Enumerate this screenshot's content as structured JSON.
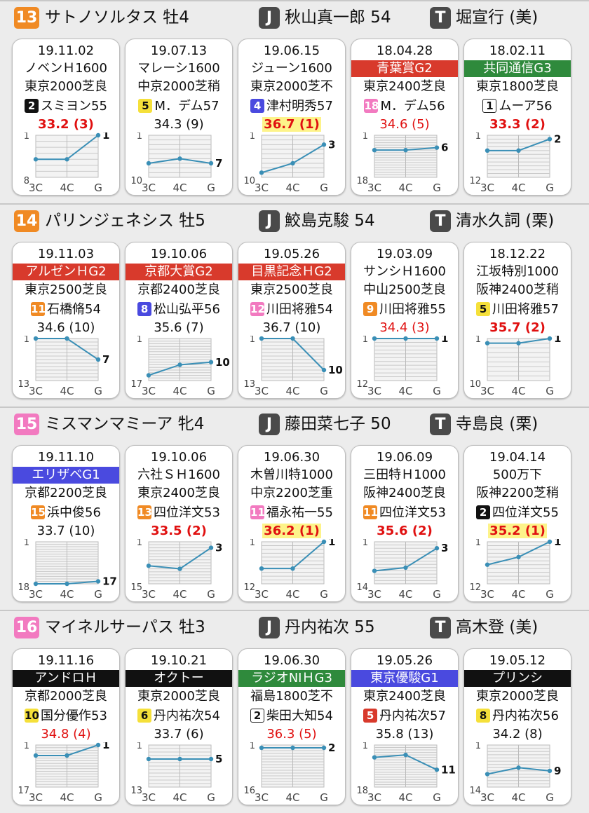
{
  "axis_labels": [
    "3C",
    "4C",
    "G"
  ],
  "horses": [
    {
      "number": "13",
      "number_color": "#f08a24",
      "name_sex_age": "サトノソルタス 牡4",
      "jockey_badge": "J",
      "jockey": "秋山真一郎 54",
      "trainer_badge": "T",
      "trainer": "堀宣行 (美)",
      "races": [
        {
          "date": "19.11.02",
          "race": "ノベンＨ1600",
          "race_band": "",
          "course": "東京2000芝良",
          "gate": "2",
          "gate_bg": "#111111",
          "gate_fg": "#ffffff",
          "gate_outline": false,
          "jockey": "スミヨン55",
          "time_pos": "33.2 (3)",
          "time_style": "red",
          "chart": {
            "top": "1",
            "bottom": "8",
            "min": 1,
            "max": 8,
            "values": [
              5,
              5,
              1
            ],
            "finish": "1"
          }
        },
        {
          "date": "19.07.13",
          "race": "マレーシ1600",
          "race_band": "",
          "course": "中京2000芝稍",
          "gate": "5",
          "gate_bg": "#f5e03a",
          "gate_fg": "#111111",
          "gate_outline": false,
          "jockey": "M．デム57",
          "time_pos": "34.3 (9)",
          "time_style": "",
          "chart": {
            "top": "1",
            "bottom": "10",
            "min": 1,
            "max": 10,
            "values": [
              7,
              6,
              7
            ],
            "finish": "7"
          }
        },
        {
          "date": "19.06.15",
          "race": "ジューン1600",
          "race_band": "",
          "course": "東京2000芝不",
          "gate": "4",
          "gate_bg": "#4a4adf",
          "gate_fg": "#ffffff",
          "gate_outline": false,
          "jockey": "津村明秀57",
          "time_pos": "36.7 (1)",
          "time_style": "red-hl",
          "chart": {
            "top": "1",
            "bottom": "10",
            "min": 1,
            "max": 10,
            "values": [
              9,
              7,
              3
            ],
            "finish": "3"
          }
        },
        {
          "date": "18.04.28",
          "race": "青葉賞G2",
          "race_band": "#d83a2c",
          "course": "東京2400芝良",
          "gate": "18",
          "gate_bg": "#f27ac0",
          "gate_fg": "#ffffff",
          "gate_outline": false,
          "jockey": "M．デム56",
          "time_pos": "34.6 (5)",
          "time_style": "red-light",
          "chart": {
            "top": "1",
            "bottom": "18",
            "min": 1,
            "max": 18,
            "values": [
              7,
              7,
              6
            ],
            "finish": "6"
          }
        },
        {
          "date": "18.02.11",
          "race": "共同通信G3",
          "race_band": "#2f8a3c",
          "course": "東京1800芝良",
          "gate": "1",
          "gate_bg": "#ffffff",
          "gate_fg": "#111111",
          "gate_outline": true,
          "jockey": "ムーア56",
          "time_pos": "33.3 (2)",
          "time_style": "red",
          "chart": {
            "top": "1",
            "bottom": "12",
            "min": 1,
            "max": 12,
            "values": [
              5,
              5,
              2
            ],
            "finish": "2"
          }
        }
      ]
    },
    {
      "number": "14",
      "number_color": "#f08a24",
      "name_sex_age": "パリンジェネシス 牡5",
      "jockey_badge": "J",
      "jockey": "鮫島克駿 54",
      "trainer_badge": "T",
      "trainer": "清水久詞 (栗)",
      "races": [
        {
          "date": "19.11.03",
          "race": "アルゼンＨG2",
          "race_band": "#d83a2c",
          "course": "東京2500芝良",
          "gate": "11",
          "gate_bg": "#f08a24",
          "gate_fg": "#ffffff",
          "gate_outline": false,
          "jockey": "石橋脩54",
          "time_pos": "34.6 (10)",
          "time_style": "",
          "chart": {
            "top": "1",
            "bottom": "13",
            "min": 1,
            "max": 13,
            "values": [
              1,
              1,
              7
            ],
            "finish": "7"
          }
        },
        {
          "date": "19.10.06",
          "race": "京都大賞G2",
          "race_band": "#d83a2c",
          "course": "京都2400芝良",
          "gate": "8",
          "gate_bg": "#4a4adf",
          "gate_fg": "#ffffff",
          "gate_outline": false,
          "jockey": "松山弘平56",
          "time_pos": "35.6 (7)",
          "time_style": "",
          "chart": {
            "top": "1",
            "bottom": "17",
            "min": 1,
            "max": 17,
            "values": [
              15,
              11,
              10
            ],
            "finish": "10"
          }
        },
        {
          "date": "19.05.26",
          "race": "目黒記念ＨG2",
          "race_band": "#d83a2c",
          "course": "東京2500芝良",
          "gate": "12",
          "gate_bg": "#f27ac0",
          "gate_fg": "#ffffff",
          "gate_outline": false,
          "jockey": "川田将雅54",
          "time_pos": "36.7 (10)",
          "time_style": "",
          "chart": {
            "top": "1",
            "bottom": "13",
            "min": 1,
            "max": 13,
            "values": [
              1,
              1,
              10
            ],
            "finish": "10"
          }
        },
        {
          "date": "19.03.09",
          "race": "サンシＨ1600",
          "race_band": "",
          "course": "中山2500芝良",
          "gate": "9",
          "gate_bg": "#f08a24",
          "gate_fg": "#ffffff",
          "gate_outline": false,
          "jockey": "川田将雅55",
          "time_pos": "34.4 (3)",
          "time_style": "red-light",
          "chart": {
            "top": "1",
            "bottom": "12",
            "min": 1,
            "max": 12,
            "values": [
              1,
              1,
              1
            ],
            "finish": "1"
          }
        },
        {
          "date": "18.12.22",
          "race": "江坂特別1000",
          "race_band": "",
          "course": "阪神2400芝稍",
          "gate": "5",
          "gate_bg": "#f5e03a",
          "gate_fg": "#111111",
          "gate_outline": false,
          "jockey": "川田将雅57",
          "time_pos": "35.7 (2)",
          "time_style": "red",
          "chart": {
            "top": "1",
            "bottom": "10",
            "min": 1,
            "max": 10,
            "values": [
              2,
              2,
              1
            ],
            "finish": "1"
          }
        }
      ]
    },
    {
      "number": "15",
      "number_color": "#f27ac0",
      "name_sex_age": "ミスマンマミーア 牝4",
      "jockey_badge": "J",
      "jockey": "藤田菜七子 50",
      "trainer_badge": "T",
      "trainer": "寺島良 (栗)",
      "races": [
        {
          "date": "19.11.10",
          "race": "エリザベG1",
          "race_band": "#4a4adf",
          "course": "京都2200芝良",
          "gate": "15",
          "gate_bg": "#f08a24",
          "gate_fg": "#ffffff",
          "gate_outline": false,
          "jockey": "浜中俊56",
          "time_pos": "33.7 (10)",
          "time_style": "",
          "chart": {
            "top": "1",
            "bottom": "18",
            "min": 1,
            "max": 18,
            "values": [
              18,
              18,
              17
            ],
            "finish": "17"
          }
        },
        {
          "date": "19.10.06",
          "race": "六社ＳＨ1600",
          "race_band": "",
          "course": "東京2400芝良",
          "gate": "13",
          "gate_bg": "#f08a24",
          "gate_fg": "#ffffff",
          "gate_outline": false,
          "jockey": "四位洋文53",
          "time_pos": "33.5 (2)",
          "time_style": "red",
          "chart": {
            "top": "1",
            "bottom": "15",
            "min": 1,
            "max": 15,
            "values": [
              9,
              10,
              3
            ],
            "finish": "3"
          }
        },
        {
          "date": "19.06.30",
          "race": "木曽川特1000",
          "race_band": "",
          "course": "中京2200芝重",
          "gate": "11",
          "gate_bg": "#f27ac0",
          "gate_fg": "#ffffff",
          "gate_outline": false,
          "jockey": "福永祐一55",
          "time_pos": "36.2 (1)",
          "time_style": "red-hl",
          "chart": {
            "top": "1",
            "bottom": "12",
            "min": 1,
            "max": 12,
            "values": [
              8,
              8,
              1
            ],
            "finish": "1"
          }
        },
        {
          "date": "19.06.09",
          "race": "三田特Ｈ1000",
          "race_band": "",
          "course": "阪神2400芝良",
          "gate": "11",
          "gate_bg": "#f08a24",
          "gate_fg": "#ffffff",
          "gate_outline": false,
          "jockey": "四位洋文53",
          "time_pos": "35.6 (2)",
          "time_style": "red",
          "chart": {
            "top": "1",
            "bottom": "14",
            "min": 1,
            "max": 14,
            "values": [
              10,
              9,
              3
            ],
            "finish": "3"
          }
        },
        {
          "date": "19.04.14",
          "race": "500万下",
          "race_band": "",
          "course": "阪神2200芝稍",
          "gate": "2",
          "gate_bg": "#111111",
          "gate_fg": "#ffffff",
          "gate_outline": false,
          "jockey": "四位洋文55",
          "time_pos": "35.2 (1)",
          "time_style": "red-hl",
          "chart": {
            "top": "1",
            "bottom": "12",
            "min": 1,
            "max": 12,
            "values": [
              7,
              5,
              1
            ],
            "finish": "1"
          }
        }
      ]
    },
    {
      "number": "16",
      "number_color": "#f27ac0",
      "name_sex_age": "マイネルサーパス 牡3",
      "jockey_badge": "J",
      "jockey": "丹内祐次 55",
      "trainer_badge": "T",
      "trainer": "高木登 (美)",
      "races": [
        {
          "date": "19.11.16",
          "race": "アンドロＨ",
          "race_band": "#111111",
          "course": "京都2000芝良",
          "gate": "10",
          "gate_bg": "#f5e03a",
          "gate_fg": "#111111",
          "gate_outline": false,
          "jockey": "国分優作53",
          "time_pos": "34.8 (4)",
          "time_style": "red-light",
          "chart": {
            "top": "1",
            "bottom": "17",
            "min": 1,
            "max": 17,
            "values": [
              5,
              5,
              1
            ],
            "finish": "1"
          }
        },
        {
          "date": "19.10.21",
          "race": "オクトー",
          "race_band": "#111111",
          "course": "東京2000芝良",
          "gate": "6",
          "gate_bg": "#f5e03a",
          "gate_fg": "#111111",
          "gate_outline": false,
          "jockey": "丹内祐次54",
          "time_pos": "33.7 (6)",
          "time_style": "",
          "chart": {
            "top": "1",
            "bottom": "13",
            "min": 1,
            "max": 13,
            "values": [
              5,
              5,
              5
            ],
            "finish": "5"
          }
        },
        {
          "date": "19.06.30",
          "race": "ラジオNIＨG3",
          "race_band": "#2f8a3c",
          "course": "福島1800芝不",
          "gate": "2",
          "gate_bg": "#ffffff",
          "gate_fg": "#111111",
          "gate_outline": true,
          "jockey": "柴田大知54",
          "time_pos": "36.3 (5)",
          "time_style": "red-light",
          "chart": {
            "top": "1",
            "bottom": "16",
            "min": 1,
            "max": 16,
            "values": [
              2,
              2,
              2
            ],
            "finish": "2"
          }
        },
        {
          "date": "19.05.26",
          "race": "東京優駿G1",
          "race_band": "#4a4adf",
          "course": "東京2400芝良",
          "gate": "5",
          "gate_bg": "#d83a2c",
          "gate_fg": "#ffffff",
          "gate_outline": false,
          "jockey": "丹内祐次57",
          "time_pos": "35.8 (13)",
          "time_style": "",
          "chart": {
            "top": "1",
            "bottom": "18",
            "min": 1,
            "max": 18,
            "values": [
              6,
              5,
              11
            ],
            "finish": "11"
          }
        },
        {
          "date": "19.05.12",
          "race": "プリンシ",
          "race_band": "#111111",
          "course": "東京2000芝良",
          "gate": "8",
          "gate_bg": "#f5e03a",
          "gate_fg": "#111111",
          "gate_outline": false,
          "jockey": "丹内祐次56",
          "time_pos": "34.2 (8)",
          "time_style": "",
          "chart": {
            "top": "1",
            "bottom": "14",
            "min": 1,
            "max": 14,
            "values": [
              10,
              8,
              9
            ],
            "finish": "9"
          }
        }
      ]
    }
  ]
}
